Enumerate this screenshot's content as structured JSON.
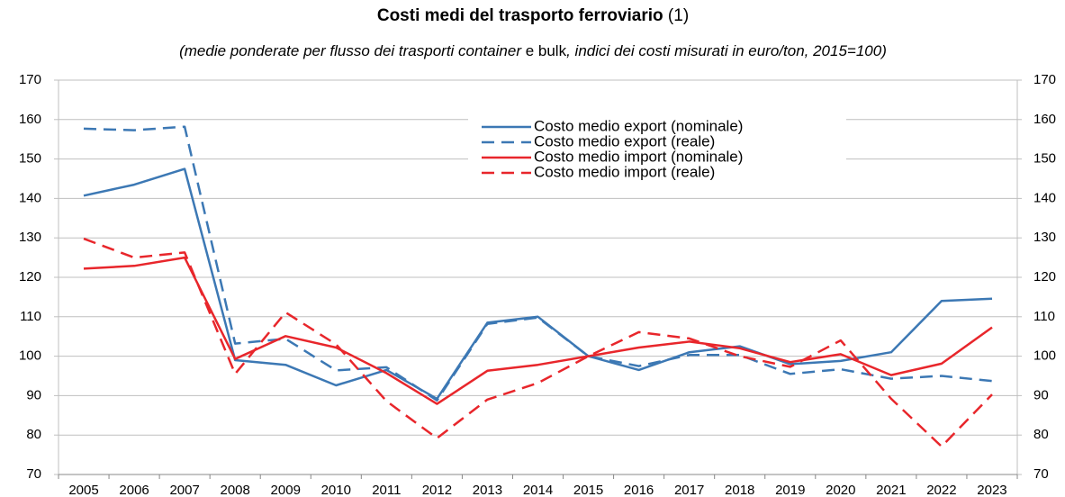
{
  "chart_data": {
    "type": "line",
    "title": "Costi medi del trasporto ferroviario",
    "title_note": "(1)",
    "subtitle": [
      {
        "text": "(medie ponderate per flusso dei trasporti container",
        "italic": true
      },
      {
        "text": " e bulk",
        "italic": false
      },
      {
        "text": ", indici dei costi misurati in euro/ton, 2015=100)",
        "italic": true
      }
    ],
    "categories": [
      "2005",
      "2006",
      "2007",
      "2008",
      "2009",
      "2010",
      "2011",
      "2012",
      "2013",
      "2014",
      "2015",
      "2016",
      "2017",
      "2018",
      "2019",
      "2020",
      "2021",
      "2022",
      "2023"
    ],
    "series": [
      {
        "name": "Costo medio export (nominale)",
        "color": "#3c78b4",
        "dashed": false,
        "values": [
          140.7,
          143.5,
          147.5,
          99,
          97.8,
          92.6,
          96.5,
          89.2,
          108.5,
          110,
          100,
          96.5,
          101,
          102.5,
          98,
          98.8,
          101,
          114,
          114.6
        ]
      },
      {
        "name": "Costo medio export (reale)",
        "color": "#3c78b4",
        "dashed": true,
        "values": [
          157.7,
          157.3,
          158.2,
          103.2,
          104.4,
          96.4,
          97.2,
          88.8,
          108.2,
          109.8,
          100,
          97.5,
          100.3,
          100.3,
          95.5,
          96.7,
          94.3,
          95,
          93.7
        ]
      },
      {
        "name": "Costo medio import (nominale)",
        "color": "#e8262b",
        "dashed": false,
        "values": [
          122.2,
          122.9,
          125,
          99.3,
          105.1,
          102.2,
          95.7,
          87.9,
          96.3,
          97.8,
          100,
          102.2,
          103.7,
          102,
          98.5,
          100.5,
          95.2,
          98.1,
          107.3
        ]
      },
      {
        "name": "Costo medio import (reale)",
        "color": "#e8262b",
        "dashed": true,
        "values": [
          129.8,
          125,
          126.3,
          95.5,
          111.1,
          103,
          88.6,
          79.2,
          89,
          93.2,
          100,
          106.1,
          104.5,
          100,
          97.3,
          104,
          89.2,
          77.1,
          90.3
        ]
      }
    ],
    "ylim": [
      70,
      170
    ],
    "yticks": [
      70,
      80,
      90,
      100,
      110,
      120,
      130,
      140,
      150,
      160,
      170
    ],
    "y2lim": [
      70,
      170
    ],
    "y2ticks": [
      70,
      80,
      90,
      100,
      110,
      120,
      130,
      140,
      150,
      160,
      170
    ],
    "grid": true
  }
}
